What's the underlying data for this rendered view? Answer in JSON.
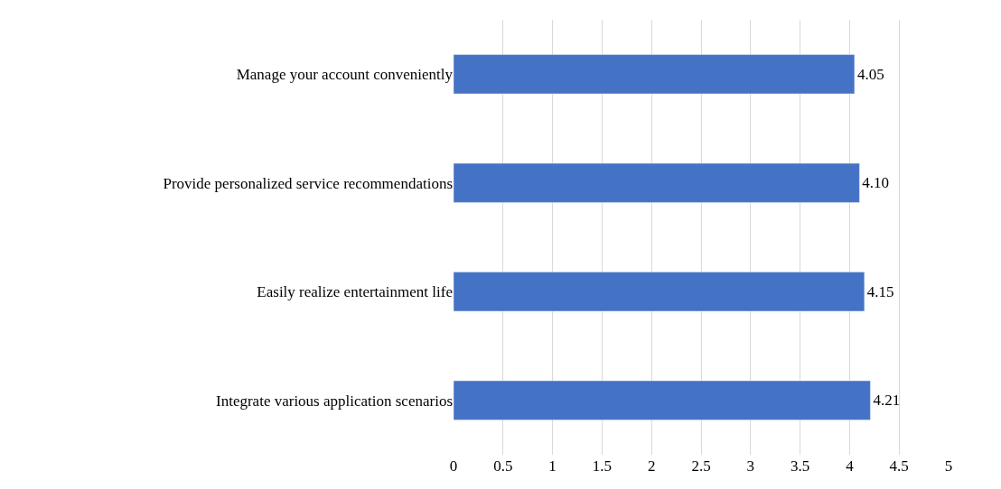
{
  "chart_data": {
    "type": "bar",
    "orientation": "horizontal",
    "categories": [
      "Manage your account conveniently",
      "Provide personalized service recommendations",
      "Easily realize entertainment life",
      "Integrate various application scenarios"
    ],
    "values": [
      4.05,
      4.1,
      4.15,
      4.21
    ],
    "value_labels": [
      "4.05",
      "4.10",
      "4.15",
      "4.21"
    ],
    "color": "#4472c4",
    "xlim": [
      0,
      5
    ],
    "xticks": [
      0,
      0.5,
      1,
      1.5,
      2,
      2.5,
      3,
      3.5,
      4,
      4.5,
      5
    ],
    "grid": "x",
    "legend": false
  }
}
